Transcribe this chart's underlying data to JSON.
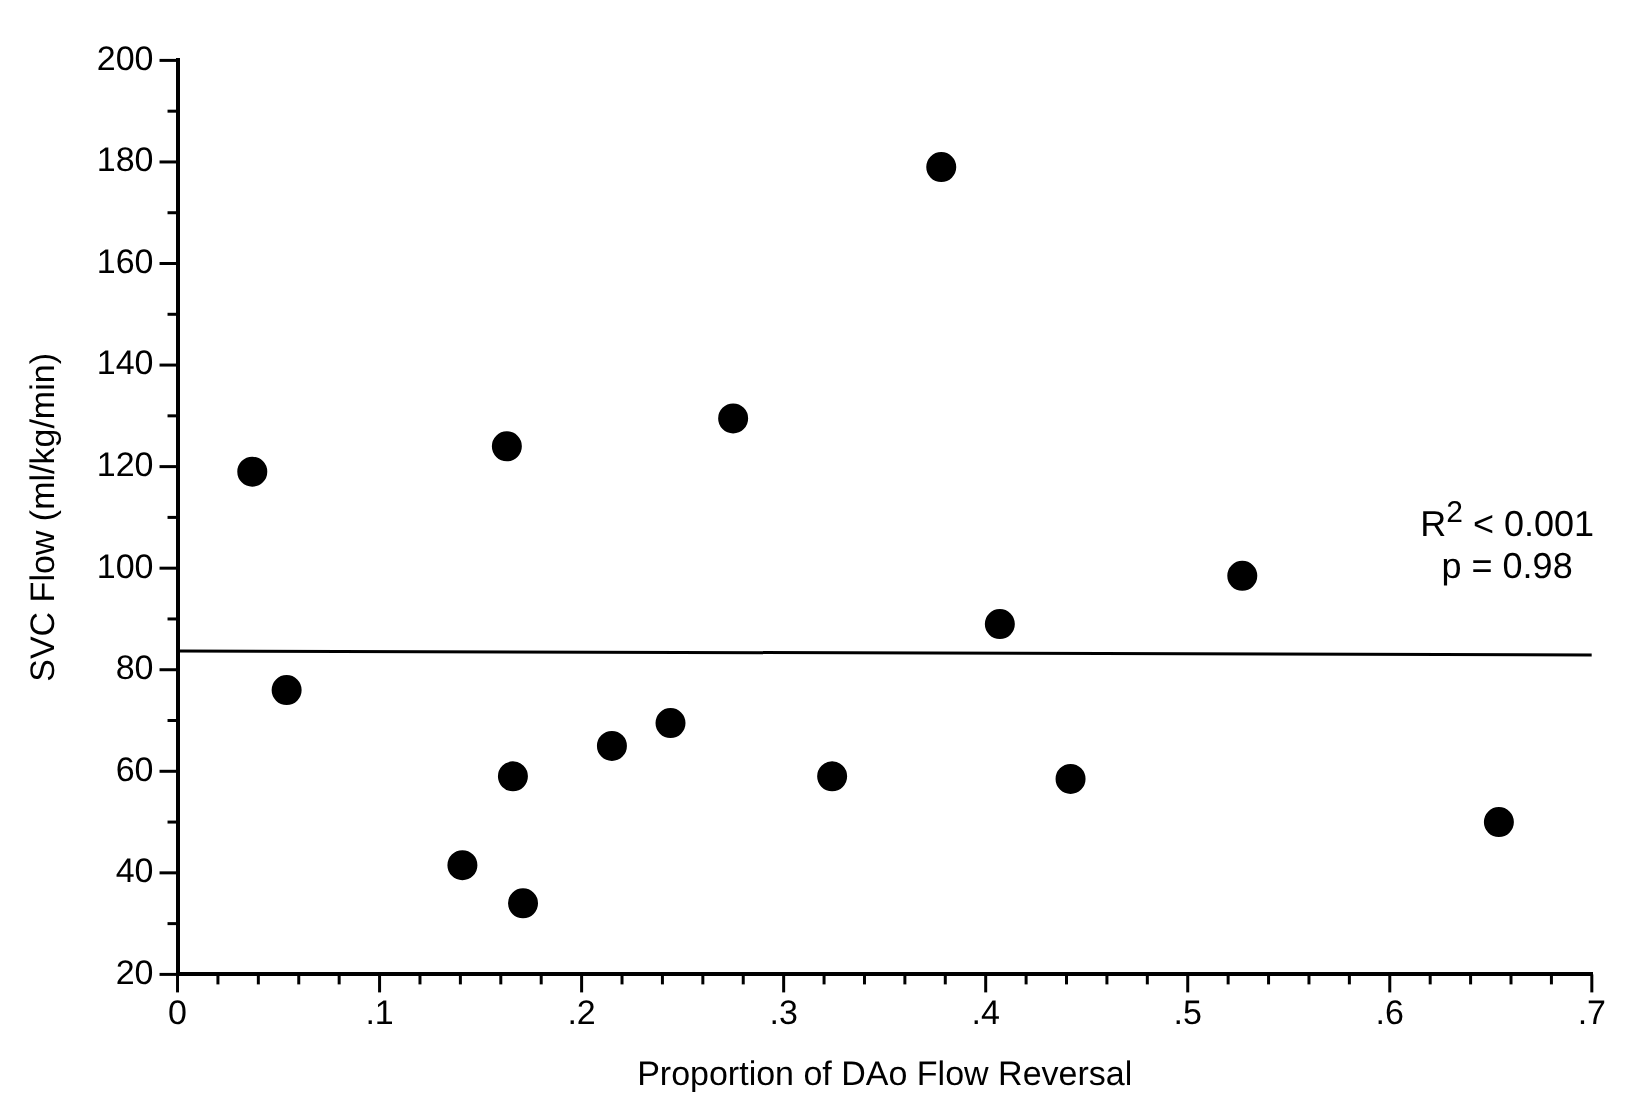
{
  "chart_data": {
    "type": "scatter",
    "xlabel": "Proportion of DAo Flow Reversal",
    "ylabel": "SVC Flow (ml/kg/min)",
    "annotations": [
      "R$^{2}$ < 0.001",
      "p = 0.98"
    ],
    "series": [
      {
        "color": "#000000",
        "marker": "circle",
        "x": [
          0.037,
          0.054,
          0.141,
          0.163,
          0.166,
          0.171,
          0.215,
          0.244,
          0.275,
          0.324,
          0.378,
          0.407,
          0.442,
          0.527,
          0.654
        ],
        "values": [
          119,
          76,
          41.5,
          124,
          59,
          34,
          65,
          69.5,
          129.5,
          59,
          179,
          89,
          58.5,
          98.5,
          50
        ]
      },
      {
        "type": "line",
        "color": "#000000",
        "marker": "none",
        "x": [
          0,
          0.7
        ],
        "values": [
          83.7,
          82.9
        ]
      }
    ],
    "xlim": [
      0,
      0.7
    ],
    "xticks": [
      {
        "value": 0,
        "label": "0"
      },
      {
        "value": 0.02,
        "label": null
      },
      {
        "value": 0.04,
        "label": null
      },
      {
        "value": 0.06,
        "label": null
      },
      {
        "value": 0.08,
        "label": null
      },
      {
        "value": 0.1,
        "label": ".1"
      },
      {
        "value": 0.12,
        "label": null
      },
      {
        "value": 0.14,
        "label": null
      },
      {
        "value": 0.16,
        "label": null
      },
      {
        "value": 0.18,
        "label": null
      },
      {
        "value": 0.2,
        "label": ".2"
      },
      {
        "value": 0.22,
        "label": null
      },
      {
        "value": 0.24,
        "label": null
      },
      {
        "value": 0.26,
        "label": null
      },
      {
        "value": 0.28,
        "label": null
      },
      {
        "value": 0.3,
        "label": ".3"
      },
      {
        "value": 0.32,
        "label": null
      },
      {
        "value": 0.34,
        "label": null
      },
      {
        "value": 0.36,
        "label": null
      },
      {
        "value": 0.38,
        "label": null
      },
      {
        "value": 0.4,
        "label": ".4"
      },
      {
        "value": 0.42,
        "label": null
      },
      {
        "value": 0.44,
        "label": null
      },
      {
        "value": 0.46,
        "label": null
      },
      {
        "value": 0.48,
        "label": null
      },
      {
        "value": 0.5,
        "label": ".5"
      },
      {
        "value": 0.52,
        "label": null
      },
      {
        "value": 0.54,
        "label": null
      },
      {
        "value": 0.56,
        "label": null
      },
      {
        "value": 0.58,
        "label": null
      },
      {
        "value": 0.6,
        "label": ".6"
      },
      {
        "value": 0.62,
        "label": null
      },
      {
        "value": 0.64,
        "label": null
      },
      {
        "value": 0.66,
        "label": null
      },
      {
        "value": 0.68,
        "label": null
      },
      {
        "value": 0.7,
        "label": ".7"
      }
    ],
    "ylim": [
      20,
      200
    ],
    "yticks": [
      20,
      {
        "value": 30,
        "label": null
      },
      40,
      {
        "value": 50,
        "label": null
      },
      60,
      {
        "value": 70,
        "label": null
      },
      80,
      {
        "value": 90,
        "label": null
      },
      100,
      {
        "value": 110,
        "label": null
      },
      120,
      {
        "value": 130,
        "label": null
      },
      140,
      {
        "value": 150,
        "label": null
      },
      160,
      {
        "value": 170,
        "label": null
      },
      180,
      {
        "value": 190,
        "label": null
      },
      200
    ],
    "grid": false,
    "legend": false
  }
}
